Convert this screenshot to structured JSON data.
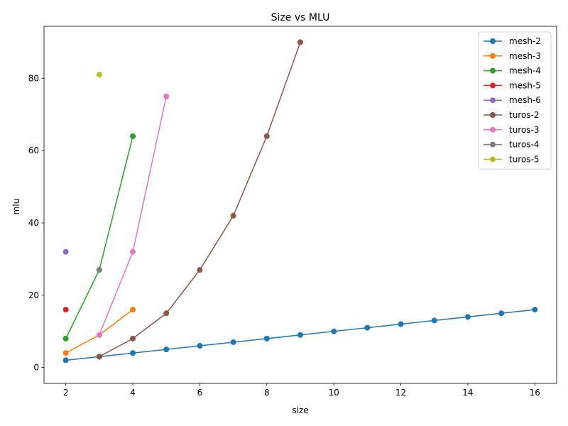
{
  "chart_data": {
    "type": "line",
    "title": "Size vs MLU",
    "xlabel": "size",
    "ylabel": "mlu",
    "xlim": [
      1.35,
      16.65
    ],
    "ylim": [
      -4.4,
      94.4
    ],
    "xticks": [
      2,
      4,
      6,
      8,
      10,
      12,
      14,
      16
    ],
    "yticks": [
      0,
      20,
      40,
      60,
      80
    ],
    "grid": false,
    "legend_position": "top-right",
    "series": [
      {
        "name": "mesh-2",
        "color": "#1f77b4",
        "x": [
          2,
          3,
          4,
          5,
          6,
          7,
          8,
          9,
          10,
          11,
          12,
          13,
          14,
          15,
          16
        ],
        "y": [
          2,
          3,
          4,
          5,
          6,
          7,
          8,
          9,
          10,
          11,
          12,
          13,
          14,
          15,
          16
        ]
      },
      {
        "name": "mesh-3",
        "color": "#ff7f0e",
        "x": [
          2,
          3,
          4
        ],
        "y": [
          4,
          9,
          16
        ]
      },
      {
        "name": "mesh-4",
        "color": "#2ca02c",
        "x": [
          2,
          3,
          4
        ],
        "y": [
          8,
          27,
          64
        ]
      },
      {
        "name": "mesh-5",
        "color": "#d62728",
        "x": [
          2
        ],
        "y": [
          16
        ]
      },
      {
        "name": "mesh-6",
        "color": "#9467bd",
        "x": [
          2
        ],
        "y": [
          32
        ]
      },
      {
        "name": "turos-2",
        "color": "#8c564b",
        "x": [
          3,
          4,
          5,
          6,
          7,
          8,
          9
        ],
        "y": [
          3,
          8,
          15,
          27,
          42,
          64,
          90
        ]
      },
      {
        "name": "turos-3",
        "color": "#e377c2",
        "x": [
          3,
          4,
          5
        ],
        "y": [
          9,
          32,
          75
        ]
      },
      {
        "name": "turos-4",
        "color": "#7f7f7f",
        "x": [
          3
        ],
        "y": [
          27
        ]
      },
      {
        "name": "turos-5",
        "color": "#bcbd22",
        "x": [
          3
        ],
        "y": [
          81
        ]
      }
    ]
  }
}
